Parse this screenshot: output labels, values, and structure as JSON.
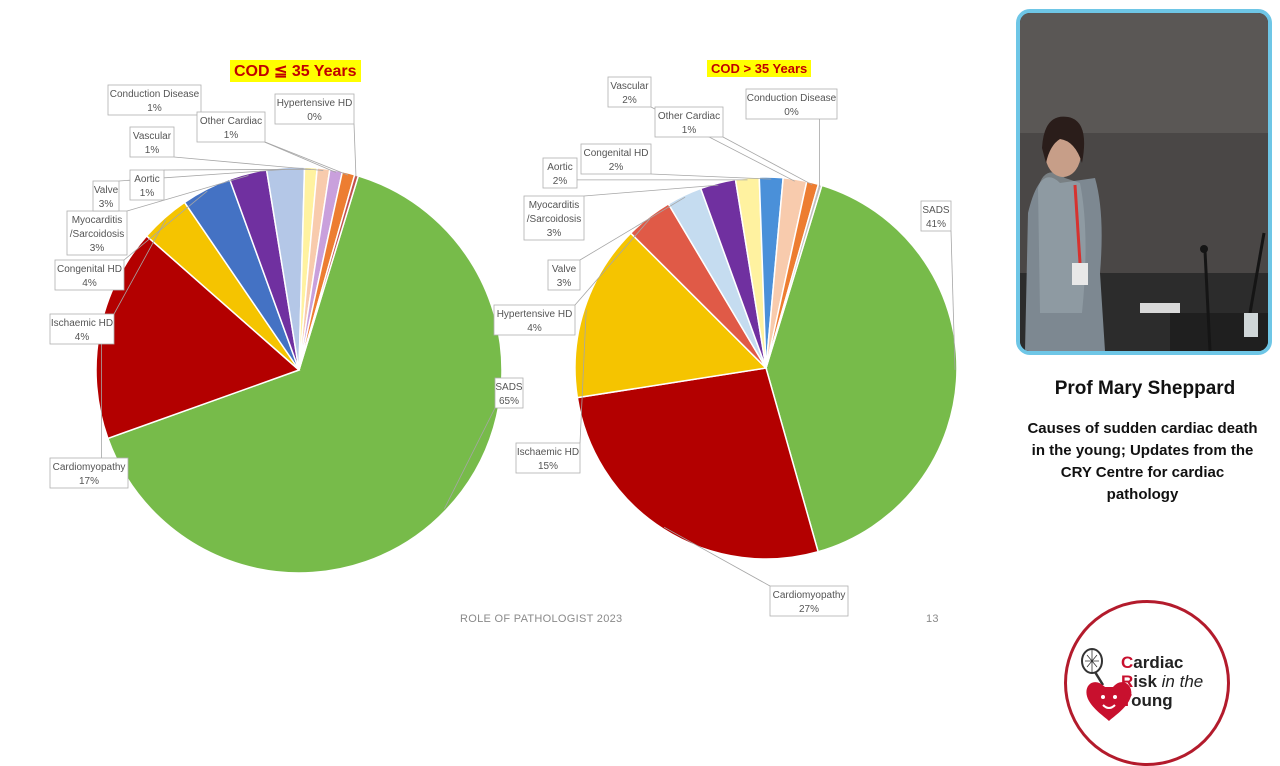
{
  "slide": {
    "footer": "ROLE OF PATHOLOGIST 2023",
    "page_number": "13"
  },
  "speaker": {
    "name": "Prof Mary Sheppard",
    "talk_title": "Causes of sudden cardiac death in the young; Updates from the CRY Centre for cardiac pathology"
  },
  "logo": {
    "line1_initial": "C",
    "line1_rest": "ardiac",
    "line2_initial": "R",
    "line2_rest": "isk",
    "line2_tail": "in the",
    "line3_initial": "Y",
    "line3_rest": "oung",
    "icon": "heart-racket-icon"
  },
  "colors": {
    "title_bg": "#ffff00",
    "title_text": "#c00000",
    "video_border": "#6ec6e6",
    "logo_red": "#c8102e"
  },
  "chart_data": [
    {
      "type": "pie",
      "title": "COD ≦ 35 Years",
      "slices": [
        {
          "label": "SADS",
          "value": 65,
          "value_label": "65%",
          "color": "#77bb4a"
        },
        {
          "label": "Cardiomyopathy",
          "value": 17,
          "value_label": "17%",
          "color": "#b30000"
        },
        {
          "label": "Ischaemic HD",
          "value": 4,
          "value_label": "4%",
          "color": "#f5c400"
        },
        {
          "label": "Congenital HD",
          "value": 4,
          "value_label": "4%",
          "color": "#4472c4"
        },
        {
          "label": "Myocarditis /Sarcoidosis",
          "value": 3,
          "value_label": "3%",
          "color": "#7030a0"
        },
        {
          "label": "Valve",
          "value": 3,
          "value_label": "3%",
          "color": "#b4c7e7"
        },
        {
          "label": "Aortic",
          "value": 1,
          "value_label": "1%",
          "color": "#fff2a0"
        },
        {
          "label": "Vascular",
          "value": 1,
          "value_label": "1%",
          "color": "#f8cbad"
        },
        {
          "label": "Conduction Disease",
          "value": 1,
          "value_label": "1%",
          "color": "#c9a0dc"
        },
        {
          "label": "Other Cardiac",
          "value": 1,
          "value_label": "1%",
          "color": "#ed7d31"
        },
        {
          "label": "Hypertensive HD",
          "value": 0.3,
          "value_label": "0%",
          "color": "#c0504d"
        }
      ]
    },
    {
      "type": "pie",
      "title": "COD > 35 Years",
      "slices": [
        {
          "label": "SADS",
          "value": 41,
          "value_label": "41%",
          "color": "#77bb4a"
        },
        {
          "label": "Cardiomyopathy",
          "value": 27,
          "value_label": "27%",
          "color": "#b30000"
        },
        {
          "label": "Ischaemic HD",
          "value": 15,
          "value_label": "15%",
          "color": "#f5c400"
        },
        {
          "label": "Hypertensive HD",
          "value": 4,
          "value_label": "4%",
          "color": "#e05a47"
        },
        {
          "label": "Valve",
          "value": 3,
          "value_label": "3%",
          "color": "#c5dcf0"
        },
        {
          "label": "Myocarditis /Sarcoidosis",
          "value": 3,
          "value_label": "3%",
          "color": "#7030a0"
        },
        {
          "label": "Aortic",
          "value": 2,
          "value_label": "2%",
          "color": "#fff2a0"
        },
        {
          "label": "Congenital HD",
          "value": 2,
          "value_label": "2%",
          "color": "#4a90d9"
        },
        {
          "label": "Vascular",
          "value": 2,
          "value_label": "2%",
          "color": "#f8cbad"
        },
        {
          "label": "Other Cardiac",
          "value": 1,
          "value_label": "1%",
          "color": "#ed7d31"
        },
        {
          "label": "Conduction Disease",
          "value": 0.3,
          "value_label": "0%",
          "color": "#bfbfbf"
        }
      ]
    }
  ]
}
